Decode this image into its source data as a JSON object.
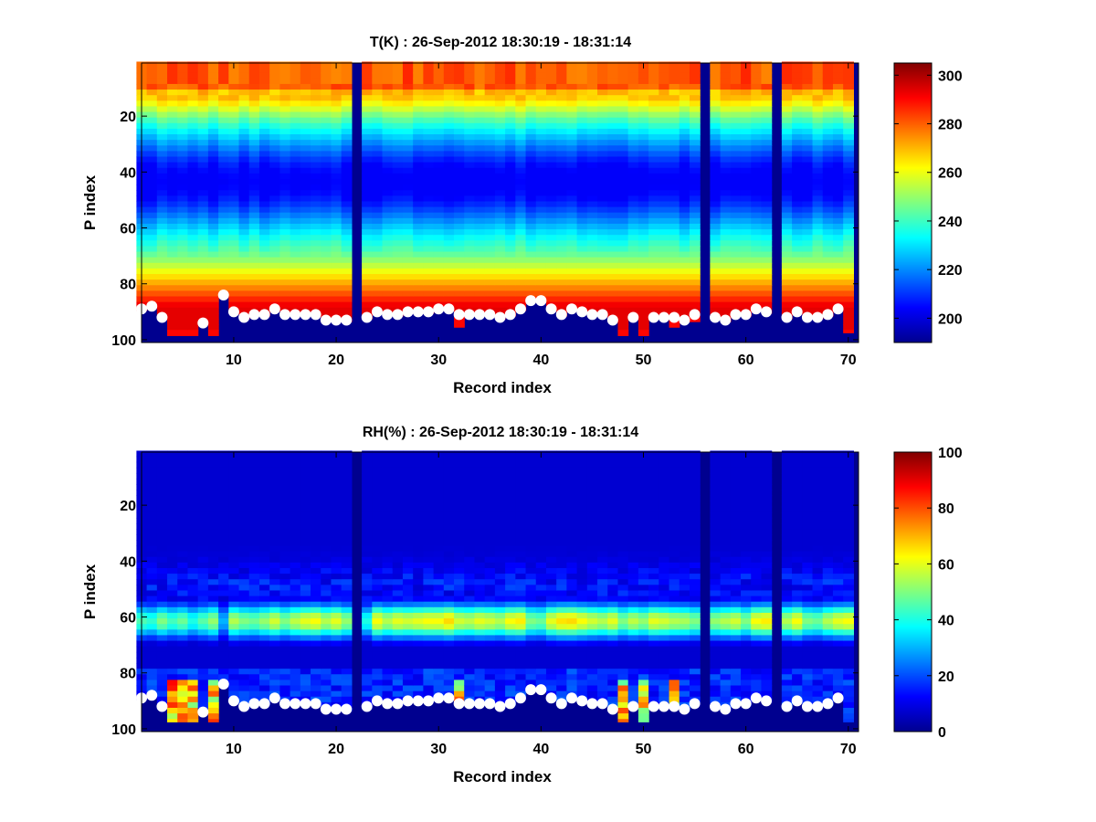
{
  "chart_data": [
    {
      "type": "heatmap",
      "title": "T(K) : 26-Sep-2012 18:30:19 - 18:31:14",
      "xlabel": "Record index",
      "ylabel": "P index",
      "xlim": [
        1,
        71
      ],
      "ylim": [
        1,
        101
      ],
      "y_reversed": true,
      "x_ticks": [
        10,
        20,
        30,
        40,
        50,
        60,
        70
      ],
      "y_ticks": [
        20,
        40,
        60,
        80,
        100
      ],
      "colorbar": {
        "min": 190,
        "max": 305,
        "ticks": [
          200,
          220,
          240,
          260,
          280,
          300
        ],
        "colormap": "jet"
      },
      "missing_records": [
        22,
        56,
        63
      ],
      "marker_series_p": [
        89,
        88,
        92,
        null,
        null,
        null,
        94,
        null,
        84,
        90,
        92,
        91,
        91,
        89,
        91,
        91,
        91,
        91,
        93,
        93,
        93,
        null,
        92,
        90,
        91,
        91,
        90,
        90,
        90,
        89,
        89,
        91,
        91,
        91,
        91,
        92,
        91,
        89,
        86,
        86,
        89,
        91,
        89,
        90,
        91,
        91,
        93,
        null,
        92,
        null,
        92,
        92,
        92,
        93,
        91,
        null,
        92,
        93,
        91,
        91,
        89,
        90,
        null,
        92,
        90,
        92,
        92,
        91,
        89,
        null
      ],
      "surface_fill_end_p": [
        null,
        null,
        null,
        98,
        98,
        98,
        null,
        98,
        null,
        null,
        null,
        null,
        null,
        null,
        null,
        null,
        null,
        null,
        null,
        null,
        null,
        null,
        null,
        null,
        null,
        null,
        null,
        null,
        null,
        null,
        null,
        95,
        null,
        null,
        null,
        null,
        null,
        null,
        null,
        null,
        null,
        null,
        null,
        null,
        null,
        null,
        null,
        98,
        null,
        98,
        null,
        null,
        95,
        null,
        93,
        null,
        null,
        null,
        null,
        null,
        null,
        null,
        null,
        null,
        null,
        null,
        null,
        null,
        null,
        null
      ]
    },
    {
      "type": "heatmap",
      "title": "RH(%) : 26-Sep-2012 18:30:19 - 18:31:14",
      "xlabel": "Record index",
      "ylabel": "P index",
      "xlim": [
        1,
        71
      ],
      "ylim": [
        1,
        101
      ],
      "y_reversed": true,
      "x_ticks": [
        10,
        20,
        30,
        40,
        50,
        60,
        70
      ],
      "y_ticks": [
        20,
        40,
        60,
        80,
        100
      ],
      "colorbar": {
        "min": 0,
        "max": 100,
        "ticks": [
          0,
          20,
          40,
          60,
          80,
          100
        ],
        "colormap": "jet"
      },
      "missing_records": [
        22,
        56,
        63
      ],
      "marker_series_p": [
        89,
        88,
        92,
        null,
        null,
        null,
        94,
        null,
        84,
        90,
        92,
        91,
        91,
        89,
        91,
        91,
        91,
        91,
        93,
        93,
        93,
        null,
        92,
        90,
        91,
        91,
        90,
        90,
        90,
        89,
        89,
        91,
        91,
        91,
        91,
        92,
        91,
        89,
        86,
        86,
        89,
        91,
        89,
        90,
        91,
        91,
        93,
        null,
        92,
        null,
        92,
        92,
        92,
        93,
        91,
        null,
        92,
        93,
        91,
        91,
        89,
        90,
        null,
        92,
        90,
        92,
        92,
        91,
        89,
        null
      ],
      "mid_level_peak_rh": [
        45,
        42,
        50,
        44,
        48,
        40,
        46,
        52,
        30,
        55,
        50,
        48,
        52,
        58,
        50,
        56,
        60,
        62,
        55,
        60,
        52,
        null,
        40,
        62,
        55,
        60,
        58,
        60,
        62,
        62,
        66,
        58,
        56,
        60,
        58,
        55,
        62,
        64,
        50,
        48,
        60,
        65,
        66,
        62,
        58,
        55,
        60,
        50,
        56,
        52,
        60,
        58,
        55,
        54,
        50,
        null,
        52,
        55,
        58,
        50,
        62,
        64,
        null,
        55,
        62,
        50,
        48,
        55,
        60,
        62
      ],
      "near_surface_high_rh_records": [
        4,
        5,
        6,
        8,
        32,
        48,
        50,
        53
      ]
    }
  ]
}
